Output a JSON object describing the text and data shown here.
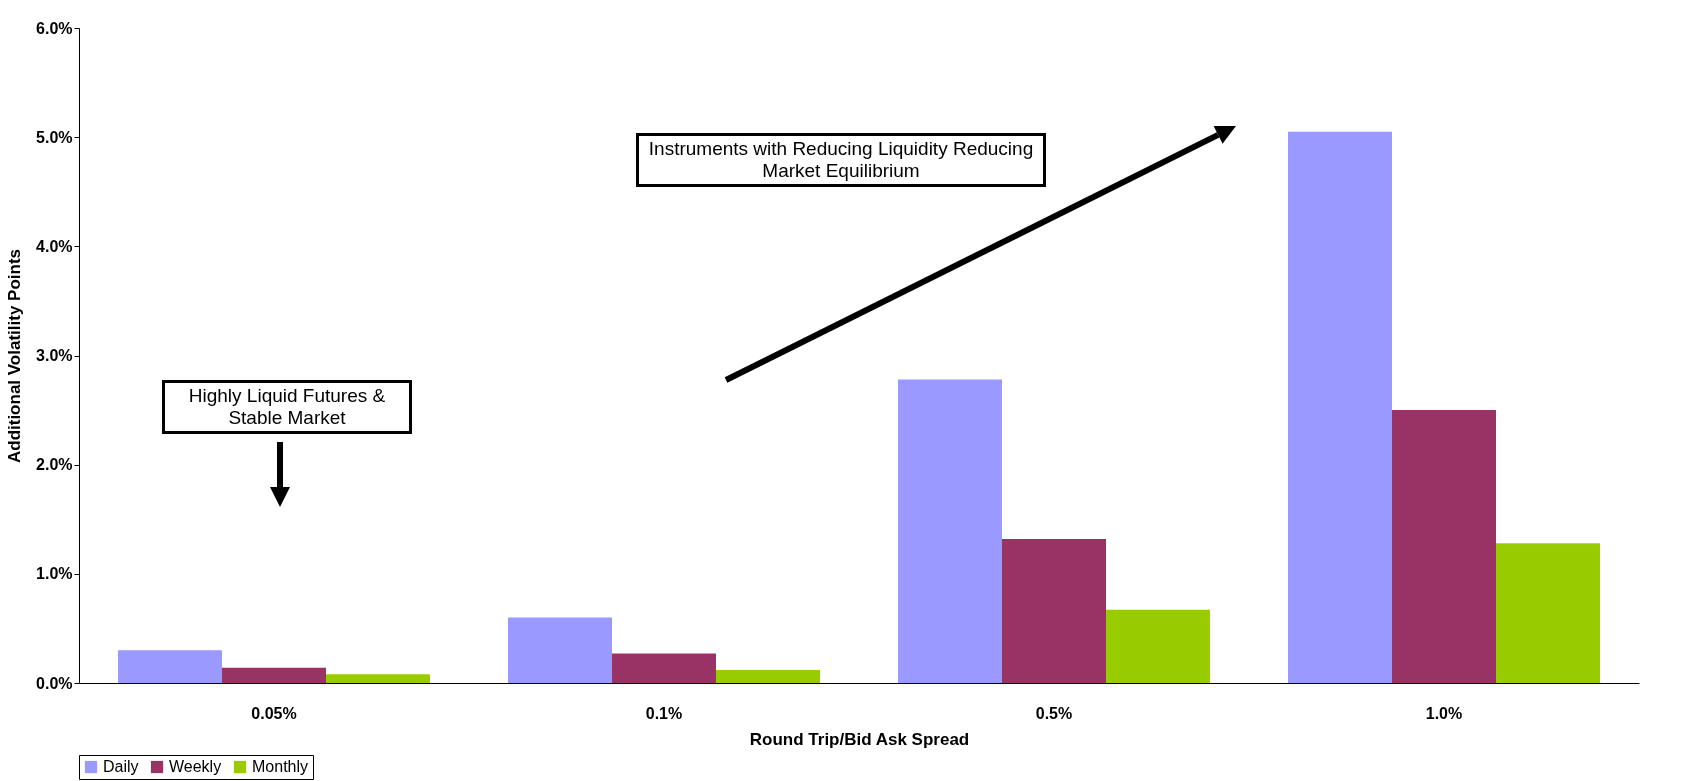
{
  "chart_data": {
    "type": "bar",
    "xlabel": "Round Trip/Bid Ask Spread",
    "ylabel": "Additional Volatility Points",
    "categories": [
      "0.05%",
      "0.1%",
      "0.5%",
      "1.0%"
    ],
    "series": [
      {
        "name": "Daily",
        "color": "#9999ff",
        "values": [
          0.3,
          0.6,
          2.78,
          5.05
        ]
      },
      {
        "name": "Weekly",
        "color": "#993366",
        "values": [
          0.14,
          0.27,
          1.32,
          2.5
        ]
      },
      {
        "name": "Monthly",
        "color": "#99cc00",
        "values": [
          0.08,
          0.12,
          0.67,
          1.28
        ]
      }
    ],
    "ylim": [
      0,
      6
    ],
    "yticks": [
      {
        "value": 0,
        "label": "0.0%"
      },
      {
        "value": 1,
        "label": "1.0%"
      },
      {
        "value": 2,
        "label": "2.0%"
      },
      {
        "value": 3,
        "label": "3.0%"
      },
      {
        "value": 4,
        "label": "4.0%"
      },
      {
        "value": 5,
        "label": "5.0%"
      },
      {
        "value": 6,
        "label": "6.0%"
      }
    ],
    "legend": "bottom",
    "annotations": [
      "Highly Liquid Futures & Stable Market",
      "Instruments with Reducing Liquidity Reducing Market Equilibrium"
    ]
  }
}
